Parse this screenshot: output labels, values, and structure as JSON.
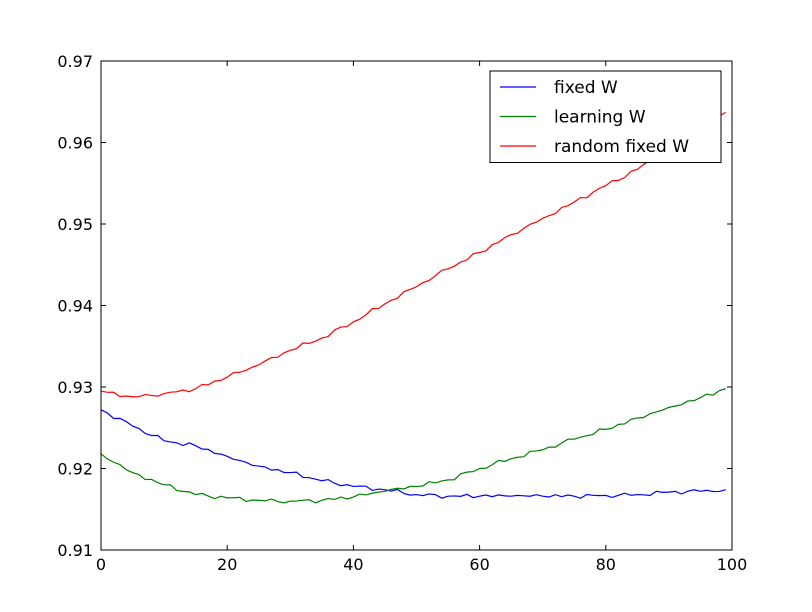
{
  "chart_data": {
    "type": "line",
    "title": "",
    "xlabel": "",
    "ylabel": "",
    "xlim": [
      0,
      100
    ],
    "ylim": [
      0.91,
      0.97
    ],
    "x_ticks": [
      0,
      20,
      40,
      60,
      80,
      100
    ],
    "x_tick_labels": [
      "0",
      "20",
      "40",
      "60",
      "80",
      "100"
    ],
    "y_ticks": [
      0.91,
      0.92,
      0.93,
      0.94,
      0.95,
      0.96,
      0.97
    ],
    "y_tick_labels": [
      "0.91",
      "0.92",
      "0.93",
      "0.94",
      "0.95",
      "0.96",
      "0.97"
    ],
    "grid": false,
    "legend_position": "top-right",
    "x": [
      0,
      5,
      10,
      15,
      20,
      25,
      30,
      35,
      40,
      45,
      50,
      55,
      60,
      65,
      70,
      75,
      80,
      85,
      90,
      95,
      99
    ],
    "series": [
      {
        "name": "fixed W",
        "color": "#0000ff",
        "values": [
          0.9272,
          0.9252,
          0.9234,
          0.9228,
          0.9215,
          0.9203,
          0.9195,
          0.9185,
          0.9178,
          0.9174,
          0.9168,
          0.9166,
          0.9166,
          0.9166,
          0.9166,
          0.9166,
          0.9167,
          0.9168,
          0.9171,
          0.9172,
          0.9174
        ]
      },
      {
        "name": "learning W",
        "color": "#008000",
        "values": [
          0.9218,
          0.9195,
          0.918,
          0.9168,
          0.9164,
          0.9161,
          0.916,
          0.9161,
          0.9165,
          0.9172,
          0.9178,
          0.9186,
          0.92,
          0.9212,
          0.9223,
          0.9236,
          0.9248,
          0.9262,
          0.9275,
          0.9287,
          0.9298
        ]
      },
      {
        "name": "random fixed W",
        "color": "#ff0000",
        "values": [
          0.9295,
          0.9288,
          0.9292,
          0.9298,
          0.9312,
          0.9327,
          0.9345,
          0.936,
          0.938,
          0.9402,
          0.9423,
          0.9445,
          0.9465,
          0.9487,
          0.9507,
          0.9527,
          0.9547,
          0.9567,
          0.9592,
          0.962,
          0.9637
        ]
      }
    ]
  }
}
